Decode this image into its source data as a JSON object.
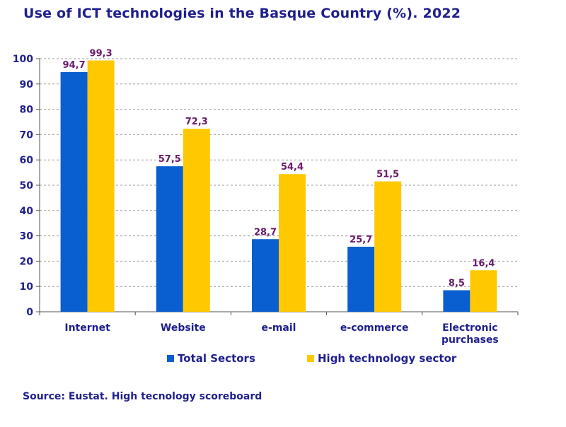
{
  "chart_data": {
    "type": "bar",
    "title": "Use of ICT technologies  in the Basque Country (%). 2022",
    "categories": [
      "Internet",
      "Website",
      "e-mail",
      "e-commerce",
      "Electronic purchases"
    ],
    "category_lines": [
      [
        "Internet"
      ],
      [
        "Website"
      ],
      [
        "e-mail"
      ],
      [
        "e-commerce"
      ],
      [
        "Electronic",
        "purchases"
      ]
    ],
    "series": [
      {
        "name": "Total Sectors",
        "values": [
          94.7,
          57.5,
          28.7,
          25.7,
          8.5
        ],
        "labels": [
          "94,7",
          "57,5",
          "28,7",
          "25,7",
          "8,5"
        ],
        "color": "#0a5fd0"
      },
      {
        "name": "High technology sector",
        "values": [
          99.3,
          72.3,
          54.4,
          51.5,
          16.4
        ],
        "labels": [
          "99,3",
          "72,3",
          "54,4",
          "51,5",
          "16,4"
        ],
        "color": "#ffc800"
      }
    ],
    "yticks": [
      0,
      10,
      20,
      30,
      40,
      50,
      60,
      70,
      80,
      90,
      100
    ],
    "ylim": [
      0,
      100
    ],
    "grid": true,
    "legend": "bottom",
    "label_color": "#6a1a6a",
    "text_color": "#1f1f8f"
  },
  "source": "Source: Eustat. High tecnology scoreboard"
}
